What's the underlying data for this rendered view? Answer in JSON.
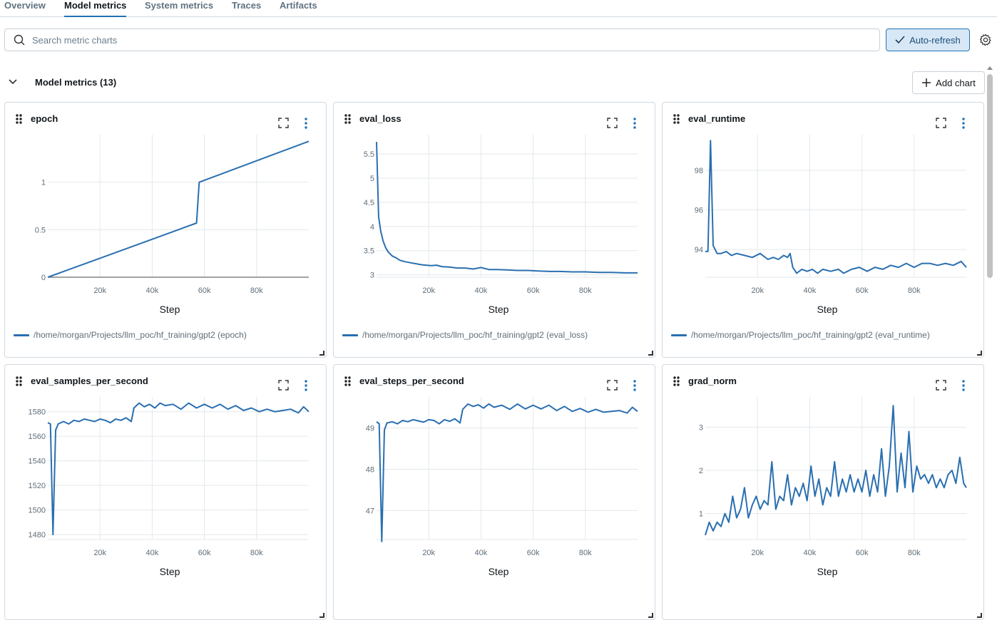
{
  "tabs": [
    "Overview",
    "Model metrics",
    "System metrics",
    "Traces",
    "Artifacts"
  ],
  "search": {
    "placeholder": "Search metric charts",
    "value": ""
  },
  "toolbar": {
    "auto_refresh_label": "Auto-refresh"
  },
  "section": {
    "title": "Model metrics (13)",
    "add_chart_label": "Add chart"
  },
  "colors": {
    "accent": "#2272b4",
    "series": "#2a6fb0",
    "grid": "#e3e8ec"
  },
  "x_axis_label": "Step",
  "x_ticks": [
    "20k",
    "40k",
    "60k",
    "80k"
  ],
  "charts": [
    {
      "name": "epoch",
      "legend": "/home/morgan/Projects/llm_poc/hf_training/gpt2 (epoch)",
      "y_ticks": [
        "0",
        "0.5",
        "1"
      ]
    },
    {
      "name": "eval_loss",
      "legend": "/home/morgan/Projects/llm_poc/hf_training/gpt2 (eval_loss)",
      "y_ticks": [
        "3",
        "3.5",
        "4",
        "4.5",
        "5",
        "5.5"
      ]
    },
    {
      "name": "eval_runtime",
      "legend": "/home/morgan/Projects/llm_poc/hf_training/gpt2 (eval_runtime)",
      "y_ticks": [
        "94",
        "96",
        "98"
      ]
    },
    {
      "name": "eval_samples_per_second",
      "legend": "",
      "y_ticks": [
        "1480",
        "1500",
        "1520",
        "1540",
        "1560",
        "1580"
      ]
    },
    {
      "name": "eval_steps_per_second",
      "legend": "",
      "y_ticks": [
        "47",
        "48",
        "49"
      ]
    },
    {
      "name": "grad_norm",
      "legend": "",
      "y_ticks": [
        "1",
        "2",
        "3"
      ]
    }
  ],
  "chart_data": [
    {
      "type": "line",
      "title": "epoch",
      "xlabel": "Step",
      "ylabel": "",
      "xlim": [
        0,
        100000
      ],
      "ylim": [
        0,
        1.5
      ],
      "series": [
        {
          "name": "/home/morgan/Projects/llm_poc/hf_training/gpt2 (epoch)",
          "x": [
            0,
            57000,
            58000,
            100000
          ],
          "values": [
            0,
            0.57,
            1.0,
            1.43
          ]
        }
      ]
    },
    {
      "type": "line",
      "title": "eval_loss",
      "xlabel": "Step",
      "ylabel": "",
      "xlim": [
        0,
        100000
      ],
      "ylim": [
        2.95,
        5.9
      ],
      "series": [
        {
          "name": "/home/morgan/Projects/llm_poc/hf_training/gpt2 (eval_loss)",
          "x": [
            0,
            800,
            1600,
            2500,
            3500,
            4500,
            6000,
            7500,
            9000,
            11000,
            13000,
            15000,
            17000,
            19000,
            21000,
            23000,
            25000,
            28000,
            31000,
            34000,
            37000,
            40000,
            43000,
            46000,
            50000,
            54000,
            58000,
            62000,
            66000,
            70000,
            75000,
            80000,
            85000,
            90000,
            95000,
            100000
          ],
          "values": [
            5.75,
            4.2,
            3.9,
            3.7,
            3.56,
            3.47,
            3.39,
            3.35,
            3.3,
            3.27,
            3.25,
            3.23,
            3.21,
            3.2,
            3.19,
            3.2,
            3.17,
            3.16,
            3.14,
            3.14,
            3.12,
            3.15,
            3.11,
            3.11,
            3.1,
            3.09,
            3.09,
            3.08,
            3.07,
            3.07,
            3.06,
            3.06,
            3.05,
            3.05,
            3.04,
            3.04
          ]
        }
      ]
    },
    {
      "type": "line",
      "title": "eval_runtime",
      "xlabel": "Step",
      "ylabel": "",
      "xlim": [
        0,
        100000
      ],
      "ylim": [
        92.6,
        99.8
      ],
      "series": [
        {
          "name": "/home/morgan/Projects/llm_poc/hf_training/gpt2 (eval_runtime)",
          "x": [
            0,
            1000,
            2000,
            3000,
            4500,
            6000,
            8000,
            10000,
            12000,
            15000,
            18000,
            21000,
            24000,
            26000,
            28000,
            30000,
            31500,
            32500,
            33500,
            35000,
            37000,
            39000,
            41000,
            43000,
            45000,
            48000,
            51000,
            53000,
            56000,
            59000,
            62000,
            65000,
            68000,
            71000,
            74000,
            77000,
            80000,
            83000,
            86000,
            89000,
            92000,
            95000,
            98000,
            100000
          ],
          "values": [
            93.9,
            93.9,
            99.5,
            94.2,
            93.8,
            93.8,
            93.9,
            93.7,
            93.8,
            93.7,
            93.6,
            93.8,
            93.5,
            93.6,
            93.5,
            93.7,
            93.6,
            93.8,
            93.1,
            92.8,
            93.0,
            92.9,
            93.0,
            92.8,
            93.0,
            92.9,
            93.0,
            92.8,
            93.0,
            93.1,
            92.9,
            93.1,
            93.0,
            93.2,
            93.1,
            93.3,
            93.1,
            93.3,
            93.3,
            93.2,
            93.3,
            93.2,
            93.4,
            93.1
          ]
        }
      ]
    },
    {
      "type": "line",
      "title": "eval_samples_per_second",
      "xlabel": "Step",
      "ylabel": "",
      "xlim": [
        0,
        100000
      ],
      "ylim": [
        1476,
        1592
      ],
      "series": [
        {
          "name": "",
          "x": [
            0,
            1000,
            2000,
            3000,
            4000,
            6000,
            8000,
            10000,
            12000,
            14000,
            16000,
            18000,
            20000,
            22000,
            24000,
            26000,
            28000,
            30000,
            32000,
            33000,
            35000,
            37000,
            39000,
            41000,
            43000,
            45000,
            48000,
            51000,
            54000,
            57000,
            60000,
            63000,
            66000,
            69000,
            72000,
            75000,
            78000,
            81000,
            84000,
            87000,
            90000,
            93000,
            96000,
            98000,
            100000
          ],
          "values": [
            1571,
            1570,
            1480,
            1565,
            1570,
            1572,
            1570,
            1573,
            1572,
            1574,
            1573,
            1572,
            1574,
            1573,
            1571,
            1574,
            1573,
            1575,
            1572,
            1583,
            1587,
            1584,
            1586,
            1583,
            1587,
            1585,
            1586,
            1582,
            1587,
            1583,
            1586,
            1583,
            1586,
            1582,
            1585,
            1581,
            1583,
            1580,
            1582,
            1580,
            1581,
            1582,
            1579,
            1584,
            1580
          ]
        }
      ]
    },
    {
      "type": "line",
      "title": "eval_steps_per_second",
      "xlabel": "Step",
      "ylabel": "",
      "xlim": [
        0,
        100000
      ],
      "ylim": [
        46.3,
        49.75
      ],
      "series": [
        {
          "name": "",
          "x": [
            0,
            1000,
            2000,
            3000,
            4000,
            6000,
            8000,
            10000,
            12000,
            14000,
            16000,
            18000,
            20000,
            22000,
            24000,
            26000,
            28000,
            30000,
            32000,
            33000,
            35000,
            37000,
            39000,
            41000,
            43000,
            45000,
            48000,
            51000,
            54000,
            57000,
            60000,
            63000,
            66000,
            69000,
            72000,
            75000,
            78000,
            81000,
            84000,
            87000,
            90000,
            93000,
            96000,
            98000,
            100000
          ],
          "values": [
            49.15,
            49.1,
            46.25,
            48.95,
            49.12,
            49.15,
            49.1,
            49.18,
            49.15,
            49.2,
            49.17,
            49.14,
            49.2,
            49.18,
            49.1,
            49.2,
            49.16,
            49.22,
            49.12,
            49.45,
            49.58,
            49.52,
            49.56,
            49.48,
            49.58,
            49.5,
            49.55,
            49.45,
            49.58,
            49.46,
            49.55,
            49.46,
            49.55,
            49.42,
            49.52,
            49.4,
            49.47,
            49.38,
            49.45,
            49.38,
            49.4,
            49.42,
            49.36,
            49.5,
            49.4
          ]
        }
      ]
    },
    {
      "type": "line",
      "title": "grad_norm",
      "xlabel": "Step",
      "ylabel": "",
      "xlim": [
        0,
        100000
      ],
      "ylim": [
        0.4,
        3.7
      ],
      "series": [
        {
          "name": "",
          "x": [
            0,
            1500,
            3000,
            4500,
            6000,
            7500,
            9000,
            10500,
            12000,
            13500,
            15000,
            16500,
            18000,
            19500,
            21000,
            22500,
            24000,
            25500,
            27000,
            28500,
            30000,
            31500,
            33000,
            34500,
            36000,
            37500,
            39000,
            40500,
            42000,
            43500,
            45000,
            46500,
            48000,
            49500,
            51000,
            52500,
            54000,
            55500,
            57000,
            58500,
            60000,
            61500,
            63000,
            64500,
            66000,
            67500,
            69000,
            70500,
            72000,
            73500,
            75000,
            76500,
            78000,
            79500,
            81000,
            82500,
            84000,
            85500,
            87000,
            88500,
            90000,
            91500,
            93000,
            94500,
            96000,
            97500,
            99000,
            100000
          ],
          "values": [
            0.5,
            0.8,
            0.6,
            0.8,
            0.7,
            1.0,
            0.8,
            1.4,
            0.9,
            1.1,
            1.6,
            0.9,
            1.2,
            1.4,
            1.1,
            1.3,
            1.2,
            2.2,
            1.1,
            1.4,
            1.3,
            1.9,
            1.2,
            1.6,
            1.4,
            1.7,
            1.3,
            2.1,
            1.4,
            1.8,
            1.2,
            1.6,
            1.4,
            2.2,
            1.4,
            1.8,
            1.5,
            1.9,
            1.5,
            1.8,
            1.5,
            2.0,
            1.4,
            1.9,
            1.5,
            2.5,
            1.4,
            2.1,
            3.5,
            1.5,
            2.4,
            1.6,
            2.9,
            1.5,
            2.1,
            1.8,
            1.9,
            1.7,
            1.9,
            1.6,
            1.8,
            1.6,
            1.9,
            2.0,
            1.7,
            2.3,
            1.7,
            1.6
          ]
        }
      ]
    }
  ]
}
